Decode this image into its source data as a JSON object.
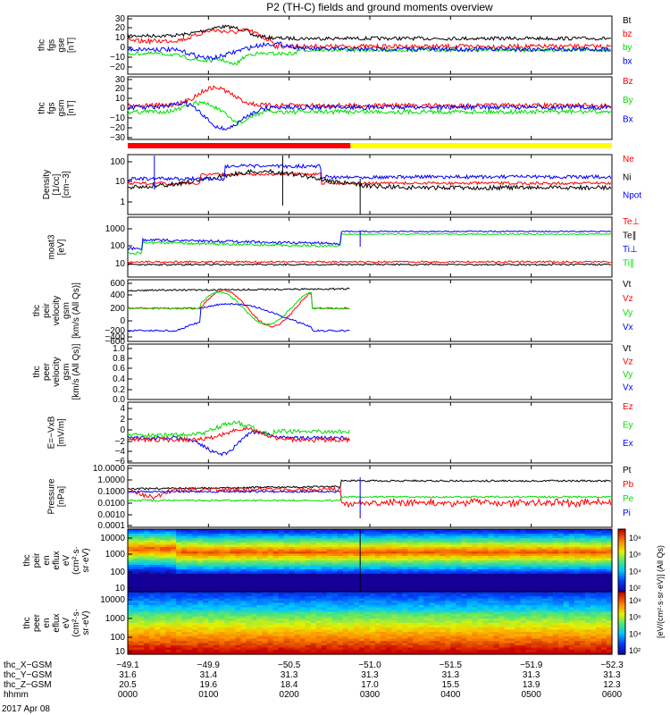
{
  "title": "P2 (TH-C) fields and ground moments overview",
  "date_label": "2017 Apr 08",
  "colors": {
    "black": "#000000",
    "red": "#ff0000",
    "green": "#00dd00",
    "blue": "#0000ff",
    "yellow": "#ffff00"
  },
  "chart_data": [
    {
      "type": "line",
      "id": "p1",
      "ylabel": [
        "thc",
        "fgs",
        "gse",
        "[nT]"
      ],
      "ylim": [
        -30,
        30
      ],
      "yticks": [
        "30",
        "20",
        "10",
        "0",
        "−10",
        "−20"
      ],
      "series": [
        {
          "name": "Bt",
          "color": "#000000"
        },
        {
          "name": "bz",
          "color": "#ff0000"
        },
        {
          "name": "by",
          "color": "#00dd00"
        },
        {
          "name": "bx",
          "color": "#0000ff"
        }
      ]
    },
    {
      "type": "line",
      "id": "p2",
      "ylabel": [
        "thc",
        "fgs",
        "gsm",
        "[nT]"
      ],
      "ylim": [
        -35,
        30
      ],
      "yticks": [
        "30",
        "20",
        "10",
        "0",
        "−10",
        "−20",
        "−30"
      ],
      "series": [
        {
          "name": "Bz",
          "color": "#ff0000"
        },
        {
          "name": "By",
          "color": "#00dd00"
        },
        {
          "name": "Bx",
          "color": "#0000ff"
        }
      ]
    },
    {
      "type": "line",
      "id": "p3",
      "ylabel": [
        "Density",
        "[1/cc]",
        "[cm−3]"
      ],
      "ylim": [
        0.5,
        150
      ],
      "log": true,
      "yticks": [
        "100",
        "10",
        "1"
      ],
      "series": [
        {
          "name": "Ne",
          "color": "#ff0000"
        },
        {
          "name": "Ni",
          "color": "#000000"
        },
        {
          "name": "Npot",
          "color": "#0000ff"
        }
      ]
    },
    {
      "type": "line",
      "id": "p4",
      "ylabel": [
        "moat3",
        "[eV]"
      ],
      "ylim": [
        4,
        10000
      ],
      "log": true,
      "yticks": [
        "1000",
        "100",
        "10"
      ],
      "series": [
        {
          "name": "Te⊥",
          "color": "#ff0000"
        },
        {
          "name": "Te∥",
          "color": "#000000"
        },
        {
          "name": "Ti⊥",
          "color": "#0000ff"
        },
        {
          "name": "Ti∥",
          "color": "#00dd00"
        }
      ]
    },
    {
      "type": "line",
      "id": "p5",
      "ylabel": [
        "thc",
        "peir",
        "velocity",
        "gsm",
        "[km/s (All Qs)]"
      ],
      "ylim": [
        -600,
        600
      ],
      "yticks": [
        "600",
        "400",
        "200",
        "0",
        "−200",
        "−400",
        "−600"
      ],
      "series": [
        {
          "name": "Vt",
          "color": "#000000"
        },
        {
          "name": "Vz",
          "color": "#ff0000"
        },
        {
          "name": "Vy",
          "color": "#00dd00"
        },
        {
          "name": "Vx",
          "color": "#0000ff"
        }
      ]
    },
    {
      "type": "line",
      "id": "p6",
      "ylabel": [
        "thc",
        "peer",
        "velocity",
        "gsm",
        "[km/s (All Qs)]"
      ],
      "ylim": [
        0,
        1
      ],
      "yticks": [
        "1.0",
        "0.8",
        "0.6",
        "0.4",
        "0.2",
        "0.0"
      ],
      "series": [
        {
          "name": "Vt",
          "color": "#000000"
        },
        {
          "name": "Vz",
          "color": "#ff0000"
        },
        {
          "name": "Vy",
          "color": "#00dd00"
        },
        {
          "name": "Vx",
          "color": "#0000ff"
        }
      ]
    },
    {
      "type": "line",
      "id": "p7",
      "ylabel": [
        "E=−VxB",
        "[mV/m]"
      ],
      "ylim": [
        -6,
        5
      ],
      "yticks": [
        "4",
        "2",
        "0",
        "−2",
        "−4",
        "−6"
      ],
      "series": [
        {
          "name": "Ez",
          "color": "#ff0000"
        },
        {
          "name": "Ey",
          "color": "#00dd00"
        },
        {
          "name": "Ex",
          "color": "#0000ff"
        }
      ]
    },
    {
      "type": "line",
      "id": "p8",
      "ylabel": [
        "Pressure",
        "[nPa]"
      ],
      "ylim": [
        0.0001,
        10
      ],
      "log": true,
      "yticks": [
        "10.0000",
        "1.0000",
        "0.1000",
        "0.0100",
        "0.0010",
        "0.0001"
      ],
      "series": [
        {
          "name": "Pt",
          "color": "#000000"
        },
        {
          "name": "Pb",
          "color": "#ff0000"
        },
        {
          "name": "Pe",
          "color": "#00dd00"
        },
        {
          "name": "Pi",
          "color": "#0000ff"
        }
      ]
    },
    {
      "type": "heatmap",
      "id": "p9",
      "ylabel": [
        "thc",
        "peir",
        "en",
        "eflux",
        "eV",
        "(cm²·s·",
        "sr·eV)"
      ],
      "yticks": [
        "10000",
        "1000",
        "100",
        "10"
      ]
    },
    {
      "type": "heatmap",
      "id": "p10",
      "ylabel": [
        "thc",
        "peer",
        "en",
        "eflux",
        "eV",
        "(cm²·s·",
        "sr·eV)"
      ],
      "yticks": [
        "10000",
        "1000",
        "100",
        "10"
      ]
    }
  ],
  "colorbar": {
    "label": "[eV/(cm²·s·sr·eV)] (All Qs)",
    "top_ticks": [
      "10⁸",
      "10⁶",
      "10⁴",
      "10²"
    ],
    "bottom_ticks": [
      "10⁸",
      "10⁶",
      "10⁴",
      "10²"
    ]
  },
  "xaxis": {
    "row_labels": [
      "thc_X−GSM",
      "thc_Y−GSM",
      "thc_Z−GSM",
      "hhmm"
    ],
    "columns": [
      {
        "vals": [
          "−49.1",
          "31.6",
          "20.5",
          "0000"
        ]
      },
      {
        "vals": [
          "−49.9",
          "31.4",
          "19.6",
          "0100"
        ]
      },
      {
        "vals": [
          "−50.5",
          "31.3",
          "18.4",
          "0200"
        ]
      },
      {
        "vals": [
          "−51.0",
          "31.3",
          "17.0",
          "0300"
        ]
      },
      {
        "vals": [
          "−51.5",
          "31.3",
          "15.5",
          "0400"
        ]
      },
      {
        "vals": [
          "−51.9",
          "31.3",
          "13.9",
          "0500"
        ]
      },
      {
        "vals": [
          "−52.3",
          "31.3",
          "12.3",
          "0600"
        ]
      }
    ]
  }
}
